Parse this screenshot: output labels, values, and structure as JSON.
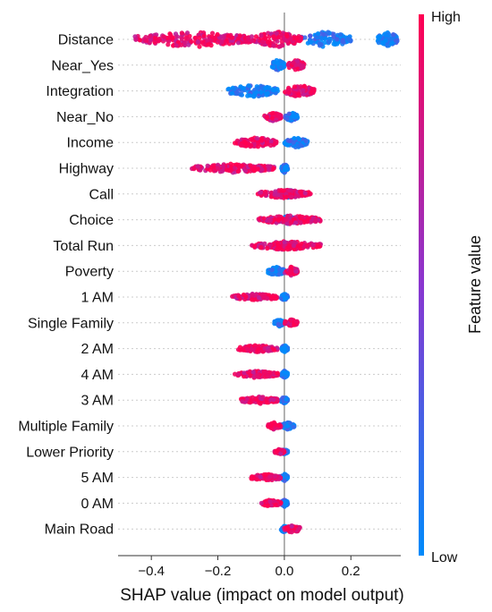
{
  "chart_data": {
    "type": "scatter",
    "subtype": "shap-beeswarm-summary",
    "xlabel": "SHAP value (impact on model output)",
    "xlim": [
      -0.5,
      0.35
    ],
    "x_ticks": [
      {
        "value": -0.4,
        "label": "−0.4"
      },
      {
        "value": -0.2,
        "label": "−0.2"
      },
      {
        "value": 0.0,
        "label": "0.0"
      },
      {
        "value": 0.2,
        "label": "0.2"
      }
    ],
    "colorbar": {
      "label": "Feature value",
      "high_label": "High",
      "low_label": "Low",
      "high_color": "#ff0052",
      "low_color": "#008bfb"
    },
    "zero_line": true,
    "features": [
      {
        "name": "Distance",
        "low": [
          [
            0.05,
            0.2
          ],
          [
            0.28,
            0.34
          ]
        ],
        "high": [
          [
            -0.45,
            -0.1
          ],
          [
            -0.1,
            0.05
          ]
        ],
        "spread": 9
      },
      {
        "name": "Near_Yes",
        "low": [
          [
            -0.04,
            0.0
          ]
        ],
        "high": [
          [
            0.01,
            0.06
          ]
        ],
        "spread": 6
      },
      {
        "name": "Integration",
        "low": [
          [
            -0.17,
            -0.02
          ]
        ],
        "high": [
          [
            0.0,
            0.09
          ]
        ],
        "spread": 7
      },
      {
        "name": "Near_No",
        "low": [
          [
            0.0,
            0.04
          ]
        ],
        "high": [
          [
            -0.06,
            -0.01
          ]
        ],
        "spread": 5
      },
      {
        "name": "Income",
        "low": [
          [
            0.0,
            0.07
          ]
        ],
        "high": [
          [
            -0.15,
            -0.02
          ]
        ],
        "spread": 6
      },
      {
        "name": "Highway",
        "low": [
          [
            -0.01,
            0.01
          ]
        ],
        "high": [
          [
            -0.28,
            -0.03
          ]
        ],
        "spread": 5
      },
      {
        "name": "Call",
        "low": [
          [
            -0.01,
            0.04
          ]
        ],
        "high": [
          [
            -0.08,
            0.08
          ]
        ],
        "spread": 5
      },
      {
        "name": "Choice",
        "low": [
          [
            -0.01,
            0.03
          ]
        ],
        "high": [
          [
            -0.08,
            0.11
          ]
        ],
        "spread": 5
      },
      {
        "name": "Total Run",
        "low": [
          [
            -0.02,
            0.03
          ]
        ],
        "high": [
          [
            -0.1,
            0.11
          ]
        ],
        "spread": 5
      },
      {
        "name": "Poverty",
        "low": [
          [
            -0.05,
            0.0
          ]
        ],
        "high": [
          [
            0.0,
            0.04
          ]
        ],
        "spread": 5
      },
      {
        "name": "1 AM",
        "low": [
          [
            -0.01,
            0.01
          ]
        ],
        "high": [
          [
            -0.16,
            -0.02
          ]
        ],
        "spread": 4
      },
      {
        "name": "Single Family",
        "low": [
          [
            -0.03,
            0.0
          ]
        ],
        "high": [
          [
            0.0,
            0.04
          ]
        ],
        "spread": 4
      },
      {
        "name": "2 AM",
        "low": [
          [
            -0.01,
            0.01
          ]
        ],
        "high": [
          [
            -0.14,
            -0.02
          ]
        ],
        "spread": 4
      },
      {
        "name": "4 AM",
        "low": [
          [
            -0.01,
            0.01
          ]
        ],
        "high": [
          [
            -0.15,
            -0.02
          ]
        ],
        "spread": 4
      },
      {
        "name": "3 AM",
        "low": [
          [
            -0.01,
            0.01
          ]
        ],
        "high": [
          [
            -0.13,
            -0.02
          ]
        ],
        "spread": 4
      },
      {
        "name": "Multiple Family",
        "low": [
          [
            -0.01,
            0.03
          ]
        ],
        "high": [
          [
            -0.05,
            -0.01
          ]
        ],
        "spread": 4
      },
      {
        "name": "Lower Priority",
        "low": [
          [
            -0.01,
            0.01
          ]
        ],
        "high": [
          [
            -0.03,
            0.0
          ]
        ],
        "spread": 3
      },
      {
        "name": "5 AM",
        "low": [
          [
            -0.01,
            0.01
          ]
        ],
        "high": [
          [
            -0.1,
            -0.01
          ]
        ],
        "spread": 4
      },
      {
        "name": "0 AM",
        "low": [
          [
            -0.01,
            0.01
          ]
        ],
        "high": [
          [
            -0.07,
            -0.01
          ]
        ],
        "spread": 4
      },
      {
        "name": "Main Road",
        "low": [
          [
            -0.01,
            0.01
          ]
        ],
        "high": [
          [
            0.0,
            0.05
          ]
        ],
        "spread": 4
      }
    ]
  }
}
